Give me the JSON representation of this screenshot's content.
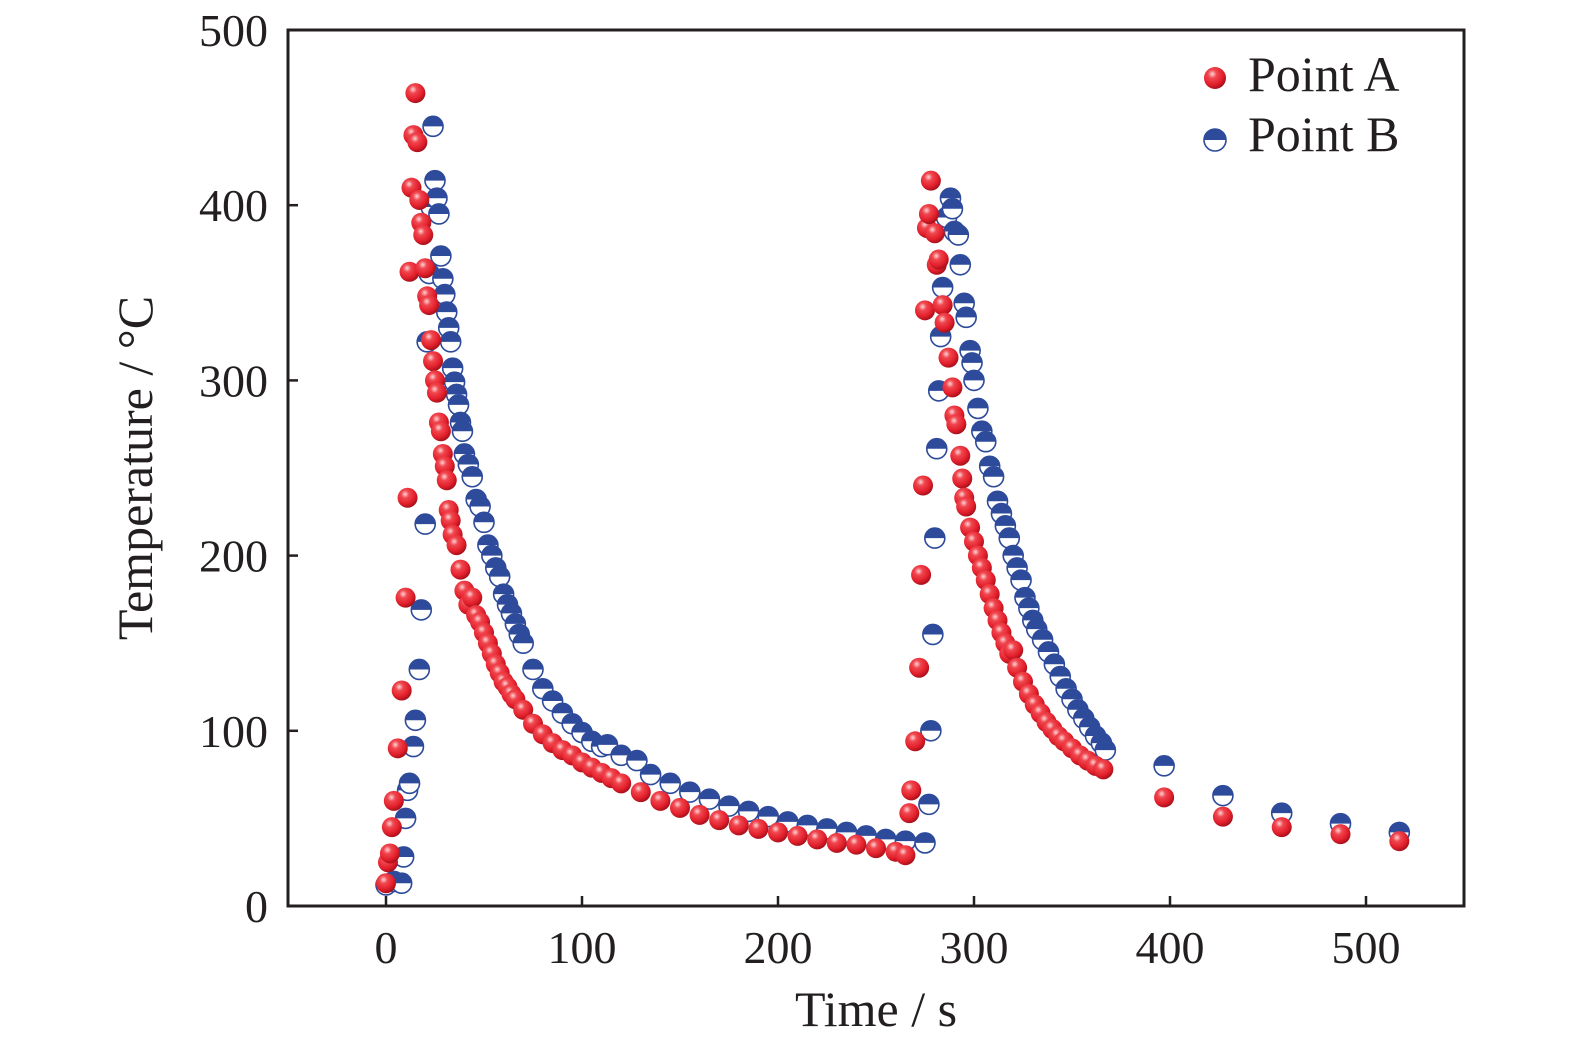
{
  "chart_data": {
    "type": "scatter",
    "title": "",
    "xlabel": "Time / s",
    "ylabel": "Temperature / °C",
    "xlim": [
      -50,
      550
    ],
    "ylim": [
      0,
      500
    ],
    "xticks": [
      0,
      100,
      200,
      300,
      400,
      500
    ],
    "yticks": [
      0,
      100,
      200,
      300,
      400,
      500
    ],
    "grid": false,
    "legend_position": "top-right",
    "series": [
      {
        "name": "Point A",
        "color": "#e8222e",
        "marker": "sphere",
        "points": [
          [
            0,
            13
          ],
          [
            1,
            25
          ],
          [
            2,
            30
          ],
          [
            3,
            45
          ],
          [
            4,
            60
          ],
          [
            6,
            90
          ],
          [
            8,
            123
          ],
          [
            10,
            176
          ],
          [
            11,
            233
          ],
          [
            12,
            362
          ],
          [
            13,
            410
          ],
          [
            14,
            440
          ],
          [
            15,
            464
          ],
          [
            16,
            436
          ],
          [
            17,
            403
          ],
          [
            18,
            390
          ],
          [
            19,
            383
          ],
          [
            20,
            364
          ],
          [
            21,
            348
          ],
          [
            22,
            343
          ],
          [
            23,
            323
          ],
          [
            24,
            311
          ],
          [
            25,
            300
          ],
          [
            26,
            293
          ],
          [
            27,
            276
          ],
          [
            28,
            271
          ],
          [
            29,
            258
          ],
          [
            30,
            251
          ],
          [
            31,
            243
          ],
          [
            32,
            226
          ],
          [
            33,
            220
          ],
          [
            34,
            212
          ],
          [
            36,
            206
          ],
          [
            38,
            192
          ],
          [
            40,
            180
          ],
          [
            42,
            172
          ],
          [
            44,
            176
          ],
          [
            46,
            166
          ],
          [
            48,
            162
          ],
          [
            50,
            156
          ],
          [
            52,
            150
          ],
          [
            54,
            144
          ],
          [
            56,
            138
          ],
          [
            58,
            133
          ],
          [
            60,
            128
          ],
          [
            62,
            125
          ],
          [
            64,
            121
          ],
          [
            66,
            118
          ],
          [
            70,
            112
          ],
          [
            75,
            104
          ],
          [
            80,
            98
          ],
          [
            85,
            93
          ],
          [
            90,
            89
          ],
          [
            95,
            86
          ],
          [
            100,
            82
          ],
          [
            105,
            79
          ],
          [
            110,
            76
          ],
          [
            115,
            73
          ],
          [
            120,
            70
          ],
          [
            130,
            65
          ],
          [
            140,
            60
          ],
          [
            150,
            56
          ],
          [
            160,
            52
          ],
          [
            170,
            49
          ],
          [
            180,
            46
          ],
          [
            190,
            44
          ],
          [
            200,
            42
          ],
          [
            210,
            40
          ],
          [
            220,
            38
          ],
          [
            230,
            36
          ],
          [
            240,
            35
          ],
          [
            250,
            33
          ],
          [
            260,
            31
          ],
          [
            265,
            29
          ],
          [
            267,
            53
          ],
          [
            268,
            66
          ],
          [
            270,
            94
          ],
          [
            272,
            136
          ],
          [
            273,
            189
          ],
          [
            274,
            240
          ],
          [
            275,
            340
          ],
          [
            276,
            387
          ],
          [
            277,
            395
          ],
          [
            278,
            414
          ],
          [
            280,
            384
          ],
          [
            281,
            366
          ],
          [
            282,
            369
          ],
          [
            284,
            343
          ],
          [
            285,
            333
          ],
          [
            287,
            313
          ],
          [
            289,
            296
          ],
          [
            290,
            280
          ],
          [
            291,
            275
          ],
          [
            293,
            257
          ],
          [
            294,
            244
          ],
          [
            295,
            233
          ],
          [
            296,
            228
          ],
          [
            298,
            216
          ],
          [
            300,
            208
          ],
          [
            302,
            200
          ],
          [
            304,
            193
          ],
          [
            306,
            186
          ],
          [
            308,
            178
          ],
          [
            310,
            170
          ],
          [
            312,
            163
          ],
          [
            314,
            156
          ],
          [
            316,
            150
          ],
          [
            318,
            144
          ],
          [
            320,
            146
          ],
          [
            322,
            136
          ],
          [
            325,
            128
          ],
          [
            328,
            121
          ],
          [
            331,
            115
          ],
          [
            334,
            110
          ],
          [
            337,
            105
          ],
          [
            340,
            101
          ],
          [
            343,
            97
          ],
          [
            346,
            94
          ],
          [
            350,
            90
          ],
          [
            354,
            86
          ],
          [
            358,
            83
          ],
          [
            362,
            80
          ],
          [
            366,
            78
          ],
          [
            397,
            62
          ],
          [
            427,
            51
          ],
          [
            457,
            45
          ],
          [
            487,
            41
          ],
          [
            517,
            37
          ]
        ]
      },
      {
        "name": "Point B",
        "color": "#2e4b9b",
        "marker": "half-filled circle",
        "points": [
          [
            0,
            12
          ],
          [
            4,
            14
          ],
          [
            8,
            13
          ],
          [
            9,
            28
          ],
          [
            10,
            50
          ],
          [
            11,
            66
          ],
          [
            12,
            70
          ],
          [
            14,
            91
          ],
          [
            15,
            106
          ],
          [
            17,
            135
          ],
          [
            18,
            169
          ],
          [
            20,
            218
          ],
          [
            21,
            322
          ],
          [
            22,
            361
          ],
          [
            23,
            399
          ],
          [
            24,
            445
          ],
          [
            25,
            414
          ],
          [
            26,
            404
          ],
          [
            27,
            395
          ],
          [
            28,
            371
          ],
          [
            29,
            358
          ],
          [
            30,
            349
          ],
          [
            31,
            339
          ],
          [
            32,
            330
          ],
          [
            33,
            322
          ],
          [
            34,
            307
          ],
          [
            35,
            299
          ],
          [
            36,
            292
          ],
          [
            37,
            286
          ],
          [
            38,
            276
          ],
          [
            39,
            271
          ],
          [
            40,
            258
          ],
          [
            42,
            252
          ],
          [
            44,
            245
          ],
          [
            46,
            232
          ],
          [
            48,
            228
          ],
          [
            50,
            219
          ],
          [
            52,
            206
          ],
          [
            54,
            200
          ],
          [
            56,
            193
          ],
          [
            58,
            188
          ],
          [
            60,
            178
          ],
          [
            62,
            172
          ],
          [
            64,
            167
          ],
          [
            66,
            161
          ],
          [
            68,
            155
          ],
          [
            70,
            150
          ],
          [
            75,
            135
          ],
          [
            80,
            124
          ],
          [
            85,
            117
          ],
          [
            90,
            110
          ],
          [
            95,
            104
          ],
          [
            100,
            99
          ],
          [
            105,
            94
          ],
          [
            110,
            91
          ],
          [
            113,
            92
          ],
          [
            120,
            86
          ],
          [
            128,
            83
          ],
          [
            135,
            75
          ],
          [
            145,
            70
          ],
          [
            155,
            65
          ],
          [
            165,
            61
          ],
          [
            175,
            57
          ],
          [
            185,
            54
          ],
          [
            195,
            51
          ],
          [
            205,
            48
          ],
          [
            215,
            46
          ],
          [
            225,
            44
          ],
          [
            235,
            42
          ],
          [
            245,
            40
          ],
          [
            255,
            38
          ],
          [
            265,
            37
          ],
          [
            275,
            36
          ],
          [
            277,
            58
          ],
          [
            278,
            100
          ],
          [
            279,
            155
          ],
          [
            280,
            210
          ],
          [
            281,
            261
          ],
          [
            282,
            294
          ],
          [
            283,
            325
          ],
          [
            284,
            353
          ],
          [
            286,
            393
          ],
          [
            288,
            404
          ],
          [
            289,
            398
          ],
          [
            290,
            385
          ],
          [
            292,
            383
          ],
          [
            293,
            366
          ],
          [
            295,
            344
          ],
          [
            296,
            336
          ],
          [
            298,
            317
          ],
          [
            299,
            310
          ],
          [
            300,
            300
          ],
          [
            302,
            284
          ],
          [
            304,
            271
          ],
          [
            306,
            265
          ],
          [
            308,
            251
          ],
          [
            310,
            245
          ],
          [
            312,
            231
          ],
          [
            314,
            224
          ],
          [
            316,
            217
          ],
          [
            318,
            210
          ],
          [
            320,
            200
          ],
          [
            322,
            193
          ],
          [
            324,
            186
          ],
          [
            326,
            176
          ],
          [
            328,
            170
          ],
          [
            330,
            163
          ],
          [
            332,
            158
          ],
          [
            335,
            152
          ],
          [
            338,
            145
          ],
          [
            341,
            138
          ],
          [
            344,
            131
          ],
          [
            347,
            124
          ],
          [
            350,
            118
          ],
          [
            353,
            112
          ],
          [
            356,
            107
          ],
          [
            359,
            102
          ],
          [
            362,
            97
          ],
          [
            365,
            93
          ],
          [
            367,
            89
          ],
          [
            397,
            80
          ],
          [
            427,
            63
          ],
          [
            457,
            53
          ],
          [
            487,
            47
          ],
          [
            517,
            42
          ]
        ]
      }
    ]
  }
}
